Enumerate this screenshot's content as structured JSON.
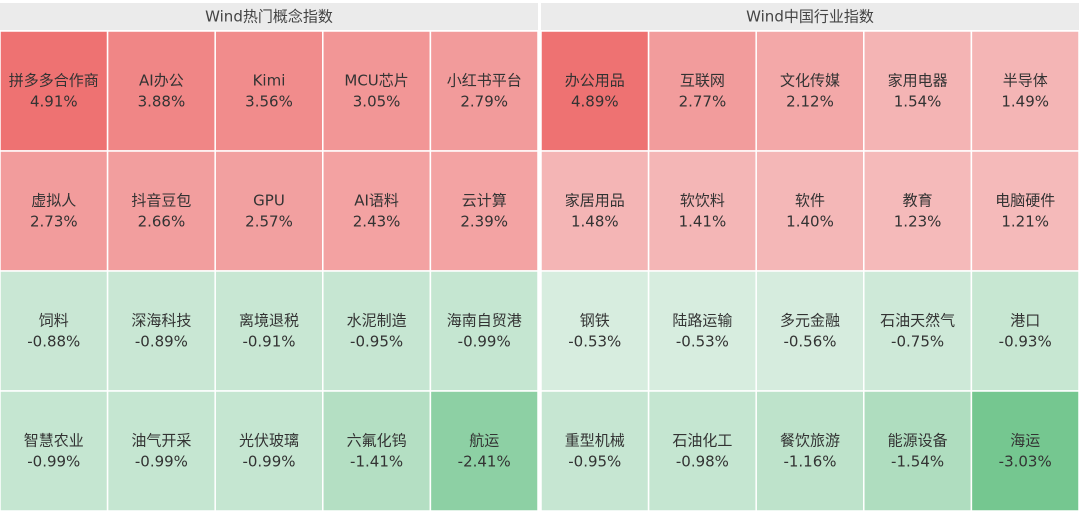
{
  "chart_data": [
    {
      "type": "heatmap",
      "title": "Wind热门概念指数",
      "categories": [
        "拼多多合作商",
        "AI办公",
        "Kimi",
        "MCU芯片",
        "小红书平台",
        "虚拟人",
        "抖音豆包",
        "GPU",
        "AI语料",
        "云计算",
        "饲料",
        "深海科技",
        "离境退税",
        "水泥制造",
        "海南自贸港",
        "智慧农业",
        "油气开采",
        "光伏玻璃",
        "六氟化钨",
        "航运"
      ],
      "values": [
        4.91,
        3.88,
        3.56,
        3.05,
        2.79,
        2.73,
        2.66,
        2.57,
        2.43,
        2.39,
        -0.88,
        -0.89,
        -0.91,
        -0.95,
        -0.99,
        -0.99,
        -0.99,
        -0.99,
        -1.41,
        -2.41
      ],
      "value_labels": [
        "4.91%",
        "3.88%",
        "3.56%",
        "3.05%",
        "2.79%",
        "2.73%",
        "2.66%",
        "2.57%",
        "2.43%",
        "2.39%",
        "-0.88%",
        "-0.89%",
        "-0.91%",
        "-0.95%",
        "-0.99%",
        "-0.99%",
        "-0.99%",
        "-0.99%",
        "-1.41%",
        "-2.41%"
      ]
    },
    {
      "type": "heatmap",
      "title": "Wind中国行业指数",
      "categories": [
        "办公用品",
        "互联网",
        "文化传媒",
        "家用电器",
        "半导体",
        "家居用品",
        "软饮料",
        "软件",
        "教育",
        "电脑硬件",
        "钢铁",
        "陆路运输",
        "多元金融",
        "石油天然气",
        "港口",
        "重型机械",
        "石油化工",
        "餐饮旅游",
        "能源设备",
        "海运"
      ],
      "values": [
        4.89,
        2.77,
        2.12,
        1.54,
        1.49,
        1.48,
        1.41,
        1.4,
        1.23,
        1.21,
        -0.53,
        -0.53,
        -0.56,
        -0.75,
        -0.93,
        -0.95,
        -0.98,
        -1.16,
        -1.54,
        -3.03
      ],
      "value_labels": [
        "4.89%",
        "2.77%",
        "2.12%",
        "1.54%",
        "1.49%",
        "1.48%",
        "1.41%",
        "1.40%",
        "1.23%",
        "1.21%",
        "-0.53%",
        "-0.53%",
        "-0.56%",
        "-0.75%",
        "-0.93%",
        "-0.95%",
        "-0.98%",
        "-1.16%",
        "-1.54%",
        "-3.03%"
      ]
    }
  ]
}
